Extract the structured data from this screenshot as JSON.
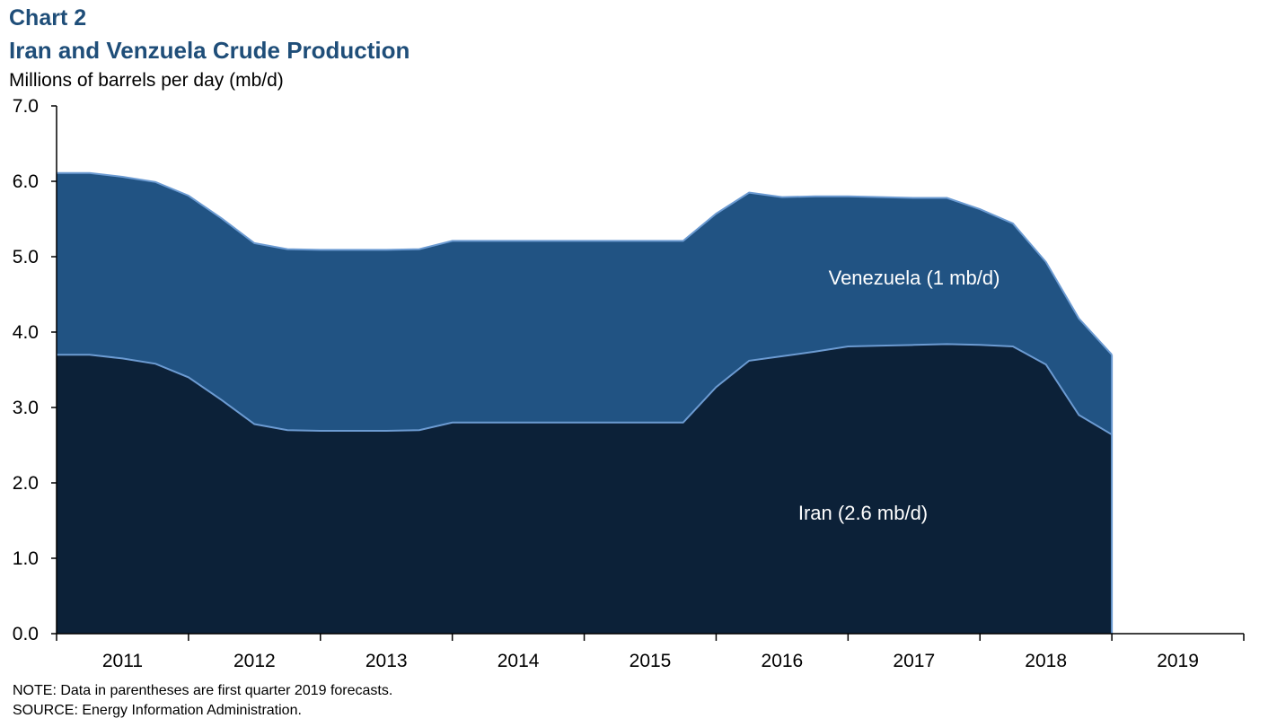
{
  "header": {
    "chart_number": "Chart 2",
    "title": "Iran and Venzuela Crude Production",
    "y_unit": "Millions of barrels per day (mb/d)"
  },
  "footer": {
    "note": "NOTE: Data in parentheses are first quarter 2019 forecasts.",
    "source": "SOURCE: Energy Information Administration."
  },
  "colors": {
    "iran": "#0c2138",
    "venezuela": "#215383",
    "edge": "#6c9bd2",
    "axis": "#000000",
    "label_text": "#ffffff",
    "title": "#1f4e79"
  },
  "chart_data": {
    "type": "area",
    "stacked": true,
    "title": "Iran and Venzuela Crude Production",
    "ylabel": "Millions of barrels per day (mb/d)",
    "ylim": [
      0,
      7
    ],
    "yticks": [
      "0.0",
      "1.0",
      "2.0",
      "3.0",
      "4.0",
      "5.0",
      "6.0",
      "7.0"
    ],
    "x_categories": [
      "2011",
      "2012",
      "2013",
      "2014",
      "2015",
      "2016",
      "2017",
      "2018",
      "2019"
    ],
    "x_period": "quarterly",
    "x": [
      "2011Q1",
      "2011Q2",
      "2011Q3",
      "2011Q4",
      "2012Q1",
      "2012Q2",
      "2012Q3",
      "2012Q4",
      "2013Q1",
      "2013Q2",
      "2013Q3",
      "2013Q4",
      "2014Q1",
      "2014Q2",
      "2014Q3",
      "2014Q4",
      "2015Q1",
      "2015Q2",
      "2015Q3",
      "2015Q4",
      "2016Q1",
      "2016Q2",
      "2016Q3",
      "2016Q4",
      "2017Q1",
      "2017Q2",
      "2017Q3",
      "2017Q4",
      "2018Q1",
      "2018Q2",
      "2018Q3",
      "2018Q4",
      "2019Q1"
    ],
    "series": [
      {
        "name": "Iran",
        "label": "Iran (2.6 mb/d)",
        "values": [
          3.7,
          3.7,
          3.65,
          3.58,
          3.4,
          3.1,
          2.78,
          2.7,
          2.69,
          2.69,
          2.69,
          2.7,
          2.8,
          2.8,
          2.8,
          2.8,
          2.8,
          2.8,
          2.8,
          2.8,
          3.27,
          3.62,
          3.68,
          3.74,
          3.81,
          3.82,
          3.83,
          3.84,
          3.83,
          3.81,
          3.57,
          2.9,
          2.64
        ]
      },
      {
        "name": "Venezuela",
        "label": "Venezuela (1 mb/d)",
        "values": [
          2.41,
          2.41,
          2.41,
          2.41,
          2.41,
          2.41,
          2.4,
          2.4,
          2.4,
          2.4,
          2.4,
          2.4,
          2.41,
          2.41,
          2.41,
          2.41,
          2.41,
          2.41,
          2.41,
          2.41,
          2.3,
          2.23,
          2.11,
          2.06,
          1.99,
          1.97,
          1.95,
          1.94,
          1.8,
          1.63,
          1.36,
          1.28,
          1.06
        ]
      }
    ],
    "series_labels_position": {
      "Venezuela": "upper band, right of center",
      "Iran": "lower band, right of center"
    },
    "grid": false,
    "legend": "none (direct labels)"
  }
}
